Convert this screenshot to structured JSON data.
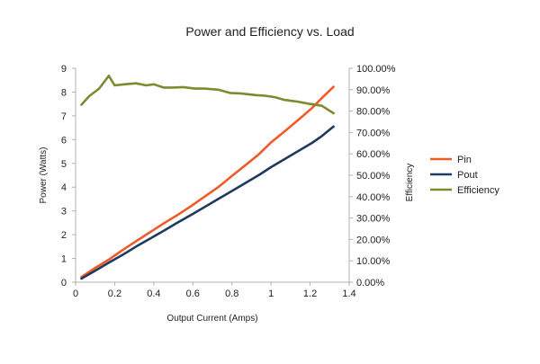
{
  "chart_data": {
    "type": "line",
    "title": "Power and Efficiency vs. Load",
    "xlabel": "Output Current (Amps)",
    "ylabel": "Power (Watts)",
    "y2label": "Efficiency",
    "xlim": [
      0,
      1.4
    ],
    "ylim": [
      0,
      9
    ],
    "y2lim": [
      0,
      1.0
    ],
    "x_ticks": [
      "0",
      "0.2",
      "0.4",
      "0.6",
      "0.8",
      "1",
      "1.2",
      "1.4"
    ],
    "y_ticks": [
      "0",
      "1",
      "2",
      "3",
      "4",
      "5",
      "6",
      "7",
      "8",
      "9"
    ],
    "y2_ticks": [
      "0.00%",
      "10.00%",
      "20.00%",
      "30.00%",
      "40.00%",
      "50.00%",
      "60.00%",
      "70.00%",
      "80.00%",
      "90.00%",
      "100.00%"
    ],
    "grid": false,
    "legend_position": "right",
    "series": [
      {
        "name": "Pin",
        "axis": "left",
        "color": "#f05a28",
        "x": [
          0.03,
          0.1,
          0.17,
          0.24,
          0.31,
          0.38,
          0.45,
          0.52,
          0.59,
          0.66,
          0.73,
          0.8,
          0.87,
          0.94,
          1.0,
          1.07,
          1.14,
          1.21,
          1.26,
          1.32
        ],
        "y": [
          0.22,
          0.6,
          0.95,
          1.35,
          1.73,
          2.1,
          2.47,
          2.82,
          3.2,
          3.6,
          4.0,
          4.47,
          4.93,
          5.4,
          5.88,
          6.35,
          6.83,
          7.33,
          7.75,
          8.22
        ]
      },
      {
        "name": "Pout",
        "axis": "left",
        "color": "#1f3a5f",
        "x": [
          0.03,
          0.1,
          0.17,
          0.24,
          0.31,
          0.38,
          0.45,
          0.52,
          0.59,
          0.66,
          0.73,
          0.8,
          0.87,
          0.94,
          1.0,
          1.07,
          1.14,
          1.21,
          1.26,
          1.32
        ],
        "y": [
          0.15,
          0.48,
          0.82,
          1.15,
          1.5,
          1.83,
          2.16,
          2.5,
          2.83,
          3.16,
          3.5,
          3.84,
          4.18,
          4.52,
          4.84,
          5.18,
          5.52,
          5.86,
          6.15,
          6.55
        ]
      },
      {
        "name": "Efficiency",
        "axis": "right",
        "color": "#7f8a2f",
        "x": [
          0.03,
          0.07,
          0.12,
          0.17,
          0.2,
          0.25,
          0.31,
          0.36,
          0.4,
          0.45,
          0.5,
          0.55,
          0.61,
          0.66,
          0.73,
          0.79,
          0.85,
          0.92,
          0.97,
          1.02,
          1.07,
          1.13,
          1.19,
          1.26,
          1.32
        ],
        "y": [
          0.83,
          0.87,
          0.905,
          0.965,
          0.92,
          0.925,
          0.93,
          0.92,
          0.925,
          0.91,
          0.91,
          0.912,
          0.905,
          0.905,
          0.9,
          0.885,
          0.882,
          0.875,
          0.872,
          0.865,
          0.852,
          0.845,
          0.835,
          0.825,
          0.79
        ]
      }
    ]
  }
}
